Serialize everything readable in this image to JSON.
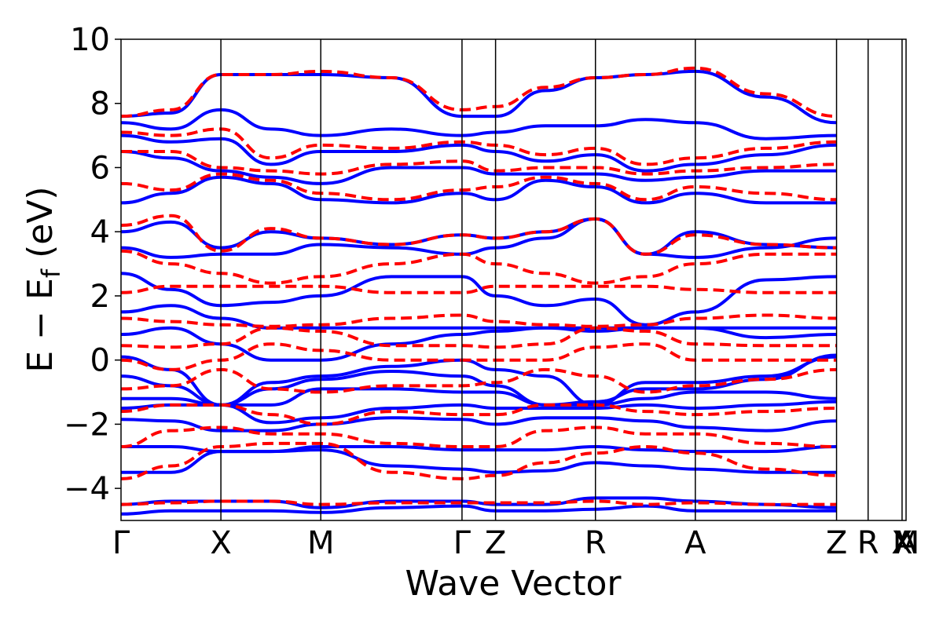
{
  "chart_data": {
    "type": "line",
    "xlabel": "Wave Vector",
    "ylabel": {
      "prefix": "E − E",
      "subscript": "f",
      "suffix": " (eV)"
    },
    "ylim": [
      -5,
      10
    ],
    "yticks": [
      -4,
      -2,
      0,
      2,
      4,
      6,
      8,
      10
    ],
    "yticklabels": [
      "−4",
      "−2",
      "0",
      "2",
      "4",
      "6",
      "8",
      "10"
    ],
    "x_ticks": [
      {
        "label": "Γ",
        "x": 0.0
      },
      {
        "label": "X",
        "x": 0.5
      },
      {
        "label": "M",
        "x": 1.0
      },
      {
        "label": "Γ",
        "x": 1.707
      },
      {
        "label": "Z",
        "x": 1.875
      },
      {
        "label": "R",
        "x": 2.375
      },
      {
        "label": "A",
        "x": 2.875
      },
      {
        "label": "Z",
        "x": 3.582
      },
      {
        "label": "R",
        "x": 3.74
      },
      {
        "label": "X",
        "x": 3.91
      },
      {
        "label": "M",
        "x": 4.08
      },
      {
        "label": "A",
        "x": 4.14
      }
    ],
    "xlim": [
      0,
      3.93
    ],
    "grid": "vertical lines at high-symmetry points",
    "series": [
      {
        "style": "solid",
        "color": "#0000ff",
        "bands": [
          [
            -4.8,
            -4.7,
            -4.7,
            -4.7,
            -4.75,
            -4.6,
            -4.55,
            -4.7,
            -4.7,
            -4.65,
            -4.55,
            -4.7,
            -4.7,
            -4.7
          ],
          [
            -4.5,
            -4.4,
            -4.4,
            -4.4,
            -4.6,
            -4.4,
            -4.4,
            -4.5,
            -4.5,
            -4.3,
            -4.3,
            -4.4,
            -4.5,
            -4.6
          ],
          [
            -3.5,
            -3.5,
            -2.85,
            -2.85,
            -2.8,
            -3.3,
            -3.4,
            -3.5,
            -3.45,
            -3.2,
            -3.3,
            -3.4,
            -3.5,
            -3.5
          ],
          [
            -2.7,
            -2.7,
            -2.85,
            -2.85,
            -2.7,
            -2.7,
            -2.8,
            -2.8,
            -2.8,
            -2.7,
            -2.8,
            -2.85,
            -2.85,
            -2.7
          ],
          [
            -1.85,
            -1.9,
            -2.2,
            -2.2,
            -2.0,
            -1.8,
            -1.85,
            -2.0,
            -1.8,
            -1.8,
            -1.9,
            -2.1,
            -2.2,
            -1.9
          ],
          [
            -1.5,
            -1.4,
            -1.4,
            -1.95,
            -1.8,
            -1.5,
            -1.4,
            -1.5,
            -1.5,
            -1.5,
            -1.4,
            -1.5,
            -1.4,
            -1.3
          ],
          [
            -1.2,
            -1.2,
            -1.4,
            -1.4,
            -0.9,
            -0.9,
            -1.0,
            -1.0,
            -1.4,
            -1.4,
            -1.2,
            -1.0,
            -1.0,
            -1.2
          ],
          [
            -0.5,
            -0.8,
            -1.4,
            -0.7,
            -0.5,
            -0.2,
            0.0,
            -0.3,
            -0.5,
            -1.4,
            -0.7,
            -0.7,
            -0.5,
            0.1
          ],
          [
            0.1,
            -0.3,
            -1.4,
            -0.9,
            -0.6,
            -0.35,
            -0.5,
            -0.8,
            -1.4,
            -1.3,
            -0.9,
            -0.9,
            -0.6,
            0.15
          ],
          [
            0.8,
            1.0,
            0.5,
            0.0,
            0.0,
            0.5,
            0.8,
            0.9,
            1.0,
            0.9,
            1.0,
            1.0,
            0.7,
            0.8
          ],
          [
            1.5,
            1.7,
            1.3,
            1.0,
            1.0,
            1.0,
            1.0,
            1.0,
            1.0,
            1.0,
            1.0,
            1.0,
            1.0,
            1.0
          ],
          [
            2.7,
            2.2,
            1.7,
            1.8,
            2.0,
            2.6,
            2.6,
            2.0,
            1.7,
            1.9,
            1.1,
            1.5,
            2.5,
            2.6
          ],
          [
            3.5,
            3.2,
            3.3,
            3.3,
            3.6,
            3.5,
            3.3,
            3.5,
            3.8,
            4.4,
            3.3,
            3.2,
            3.5,
            3.8
          ],
          [
            4.0,
            4.3,
            3.5,
            4.0,
            3.8,
            3.6,
            3.9,
            3.8,
            4.0,
            4.4,
            3.3,
            4.0,
            3.6,
            3.5
          ],
          [
            4.9,
            5.2,
            5.7,
            5.5,
            5.0,
            4.9,
            5.2,
            5.0,
            5.6,
            5.4,
            4.9,
            5.2,
            4.9,
            4.9
          ],
          [
            6.5,
            6.3,
            5.9,
            5.7,
            5.5,
            6.0,
            6.0,
            5.8,
            5.8,
            5.8,
            5.6,
            5.7,
            5.9,
            5.9
          ],
          [
            7.0,
            6.8,
            6.9,
            6.1,
            6.5,
            6.5,
            6.7,
            6.5,
            6.2,
            6.4,
            5.9,
            6.1,
            6.4,
            6.7
          ],
          [
            7.4,
            7.2,
            7.8,
            7.2,
            7.0,
            7.2,
            7.0,
            7.1,
            7.3,
            7.3,
            7.5,
            7.4,
            6.9,
            7.0
          ],
          [
            7.6,
            7.7,
            8.9,
            8.9,
            8.9,
            8.8,
            7.6,
            7.6,
            8.4,
            8.8,
            8.9,
            9.0,
            8.2,
            7.4
          ]
        ]
      },
      {
        "style": "dashed",
        "color": "#ff0000",
        "bands": [
          [
            -4.5,
            -4.45,
            -4.4,
            -4.4,
            -4.5,
            -4.45,
            -4.45,
            -4.45,
            -4.45,
            -4.4,
            -4.5,
            -4.45,
            -4.5,
            -4.5
          ],
          [
            -3.7,
            -3.3,
            -2.7,
            -2.6,
            -2.6,
            -3.5,
            -3.7,
            -3.6,
            -3.2,
            -2.9,
            -2.7,
            -2.9,
            -3.4,
            -3.6
          ],
          [
            -2.7,
            -2.2,
            -2.1,
            -2.3,
            -2.3,
            -2.6,
            -2.7,
            -2.7,
            -2.2,
            -2.1,
            -2.3,
            -2.3,
            -2.6,
            -2.7
          ],
          [
            -1.6,
            -1.4,
            -1.4,
            -1.7,
            -2.0,
            -1.6,
            -1.7,
            -1.7,
            -1.4,
            -1.4,
            -1.6,
            -1.7,
            -1.6,
            -1.5
          ],
          [
            -0.9,
            -0.8,
            -0.3,
            -0.9,
            -1.0,
            -0.8,
            -0.8,
            -0.7,
            -0.3,
            -0.5,
            -1.0,
            -0.8,
            -0.6,
            -0.3
          ],
          [
            0.0,
            -0.3,
            0.0,
            0.5,
            0.3,
            0.0,
            0.0,
            0.0,
            0.0,
            0.4,
            0.5,
            0.0,
            0.0,
            0.0
          ],
          [
            0.45,
            0.4,
            0.5,
            1.0,
            0.9,
            0.45,
            0.45,
            0.4,
            0.5,
            1.0,
            0.9,
            0.5,
            0.45,
            0.45
          ],
          [
            1.3,
            1.2,
            1.1,
            1.05,
            1.1,
            1.3,
            1.4,
            1.2,
            1.1,
            1.05,
            1.1,
            1.3,
            1.4,
            1.3
          ],
          [
            2.1,
            2.3,
            2.3,
            2.3,
            2.3,
            2.1,
            2.1,
            2.3,
            2.3,
            2.3,
            2.3,
            2.2,
            2.1,
            2.1
          ],
          [
            3.4,
            3.0,
            2.7,
            2.4,
            2.6,
            3.0,
            3.3,
            3.0,
            2.7,
            2.4,
            2.6,
            3.0,
            3.3,
            3.3
          ],
          [
            4.2,
            4.5,
            3.4,
            4.1,
            3.8,
            3.6,
            3.9,
            3.8,
            4.0,
            4.4,
            3.3,
            3.9,
            3.6,
            3.5
          ],
          [
            5.5,
            5.3,
            5.8,
            5.6,
            5.2,
            5.0,
            5.3,
            5.4,
            5.7,
            5.5,
            5.0,
            5.4,
            5.2,
            5.0
          ],
          [
            6.5,
            6.5,
            6.0,
            5.9,
            5.8,
            6.1,
            6.2,
            5.9,
            6.0,
            6.0,
            5.8,
            5.9,
            6.0,
            6.1
          ],
          [
            7.1,
            7.0,
            7.2,
            6.3,
            6.7,
            6.6,
            6.8,
            6.7,
            6.4,
            6.6,
            6.1,
            6.3,
            6.6,
            6.8
          ],
          [
            7.6,
            7.8,
            8.9,
            8.9,
            9.0,
            8.8,
            7.8,
            7.9,
            8.5,
            8.8,
            8.9,
            9.1,
            8.3,
            7.6
          ]
        ]
      }
    ]
  }
}
